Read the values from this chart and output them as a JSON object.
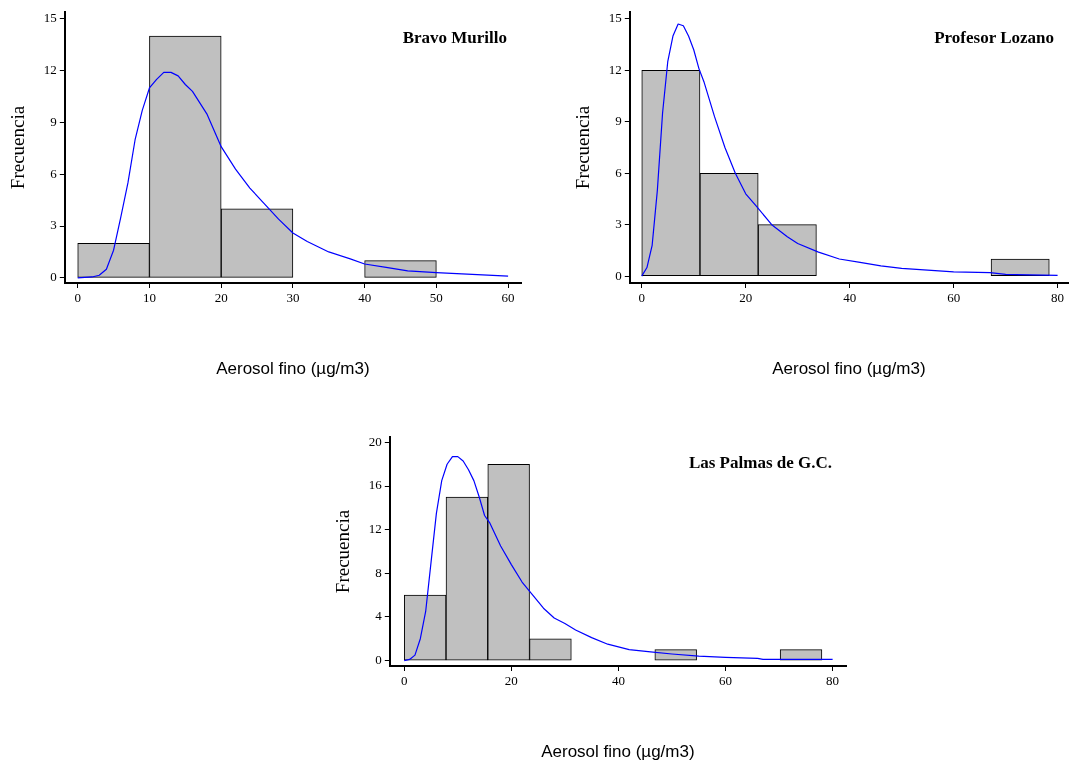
{
  "chart_data": [
    {
      "type": "histogram",
      "title": "Bravo Murillo",
      "xlabel": "Aerosol fino (µg/m3)",
      "ylabel": "Frecuencia",
      "bins": [
        0,
        10,
        20,
        30,
        40,
        50
      ],
      "values": [
        2,
        14,
        4,
        0,
        1
      ],
      "color": "#c0c0c0",
      "xlim": [
        -1.8,
        61.8
      ],
      "ylim": [
        -0.3,
        15.4
      ],
      "xticks": [
        0,
        10,
        20,
        30,
        40,
        50,
        60
      ],
      "yticks": [
        0,
        3,
        6,
        9,
        12,
        15
      ],
      "grid": false,
      "series": [
        {
          "type": "line",
          "color": "#0000ff",
          "x": [
            0,
            2,
            3,
            4,
            5,
            6,
            7,
            8,
            9,
            10,
            11,
            12,
            13,
            14,
            15,
            16,
            18,
            20,
            22,
            24,
            26,
            28,
            30,
            32,
            35,
            38,
            40,
            43,
            46,
            50,
            55,
            60
          ],
          "values": [
            0,
            0.05,
            0.15,
            0.5,
            1.6,
            3.5,
            5.5,
            8,
            9.7,
            11,
            11.5,
            11.9,
            11.9,
            11.7,
            11.2,
            10.8,
            9.5,
            7.6,
            6.3,
            5.2,
            4.3,
            3.4,
            2.6,
            2.1,
            1.5,
            1.1,
            0.8,
            0.6,
            0.4,
            0.3,
            0.2,
            0.1
          ]
        }
      ]
    },
    {
      "type": "histogram",
      "title": "Profesor Lozano",
      "xlabel": "Aerosol fino (µg/m3)",
      "ylabel": "Frecuencia",
      "bins": [
        0,
        11.2,
        22.4,
        33.6,
        44.8,
        56,
        67.2,
        78.4
      ],
      "values": [
        12,
        6,
        3,
        0,
        0,
        0,
        1
      ],
      "color": "#c0c0c0",
      "xlim": [
        -2.3,
        82
      ],
      "ylim": [
        -0.4,
        15.4
      ],
      "xticks": [
        0,
        20,
        40,
        60,
        80
      ],
      "yticks": [
        0,
        3,
        6,
        9,
        12,
        15
      ],
      "grid": false,
      "series": [
        {
          "type": "line",
          "color": "#0000ff",
          "x": [
            0,
            1,
            2,
            3,
            4,
            5,
            6,
            7,
            8,
            9,
            10,
            11,
            12,
            14,
            16,
            18,
            20,
            22,
            25,
            28,
            30,
            34,
            38,
            42,
            46,
            50,
            55,
            60,
            67,
            70,
            80
          ],
          "values": [
            0,
            0.5,
            1.8,
            5,
            9.5,
            12.5,
            14,
            14.7,
            14.6,
            14,
            13.2,
            12.1,
            11.3,
            9.3,
            7.5,
            6,
            4.8,
            4.1,
            3,
            2.3,
            1.9,
            1.4,
            1,
            0.8,
            0.6,
            0.45,
            0.35,
            0.25,
            0.2,
            0.1,
            0.05
          ]
        }
      ]
    },
    {
      "type": "histogram",
      "title": "Las Palmas de G.C.",
      "xlabel": "Aerosol fino (µg/m3)",
      "ylabel": "Frecuencia",
      "bins": [
        0,
        7.8,
        15.6,
        23.4,
        31.2,
        39,
        46.8,
        54.6,
        62.4,
        70.2,
        78
      ],
      "values": [
        6,
        15,
        18,
        2,
        0,
        0,
        1,
        0,
        0,
        1
      ],
      "color": "#c0c0c0",
      "xlim": [
        -2.7,
        82.5
      ],
      "ylim": [
        -0.5,
        20.5
      ],
      "xticks": [
        0,
        20,
        40,
        60,
        80
      ],
      "yticks": [
        0,
        4,
        8,
        12,
        16,
        20
      ],
      "grid": false,
      "series": [
        {
          "type": "line",
          "color": "#0000ff",
          "x": [
            0,
            1,
            2,
            3,
            4,
            5,
            6,
            7,
            8,
            9,
            10,
            11,
            12,
            13,
            14,
            15,
            16,
            18,
            20,
            22,
            24,
            26,
            28,
            30,
            32,
            35,
            38,
            42,
            46,
            50,
            55,
            60,
            66,
            67,
            80
          ],
          "values": [
            0,
            0.1,
            0.5,
            2,
            4.5,
            9,
            13.5,
            16.5,
            18,
            18.7,
            18.7,
            18.3,
            17.5,
            16.5,
            15,
            13.3,
            12.6,
            10.5,
            8.8,
            7.2,
            6,
            4.8,
            3.9,
            3.4,
            2.8,
            2.1,
            1.5,
            1,
            0.8,
            0.6,
            0.4,
            0.3,
            0.2,
            0.1,
            0.1
          ]
        }
      ]
    }
  ]
}
